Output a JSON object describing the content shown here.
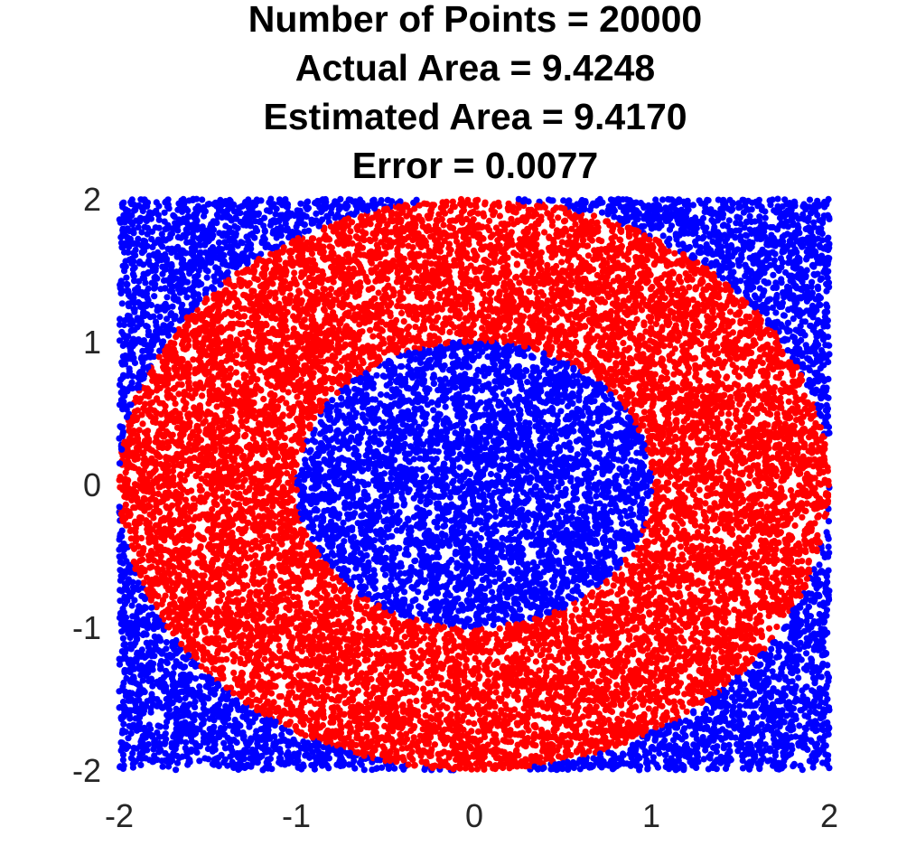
{
  "chart_data": {
    "type": "scatter",
    "title": [
      "Number of Points = 20000",
      "Actual Area = 9.4248",
      "Estimated Area = 9.4170",
      "Error = 0.0077"
    ],
    "xlabel": "",
    "ylabel": "",
    "xlim": [
      -2,
      2
    ],
    "ylim": [
      -2,
      2
    ],
    "xticks": [
      -2,
      -1,
      0,
      1,
      2
    ],
    "yticks": [
      -2,
      -1,
      0,
      1,
      2
    ],
    "x_tick_labels": [
      "-2",
      "-1",
      "0",
      "1",
      "2"
    ],
    "y_tick_labels": [
      "-2",
      "-1",
      "0",
      "1",
      "2"
    ],
    "grid": false,
    "box": false,
    "series": [
      {
        "region": "inside annulus (1 <= r <= 2)",
        "color": "#ff0000",
        "marker": "filled-circle"
      },
      {
        "region": "outside annulus (r < 1 or r > 2)",
        "color": "#0000ff",
        "marker": "filled-circle"
      }
    ],
    "num_points": 20000,
    "annulus": {
      "inner_radius": 1,
      "outer_radius": 2
    }
  }
}
